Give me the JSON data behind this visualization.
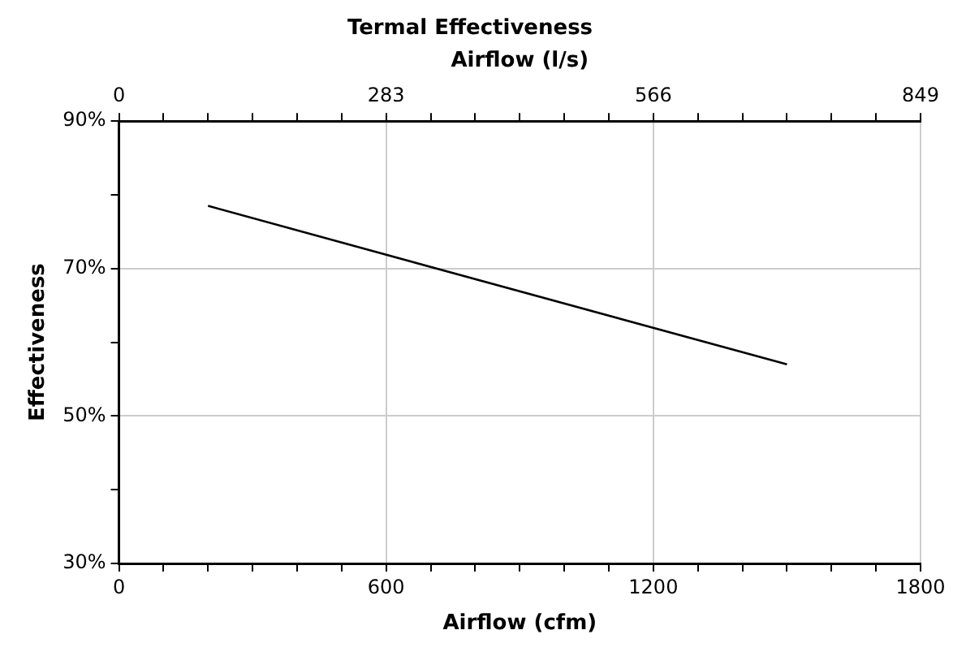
{
  "chart_data": {
    "type": "line",
    "title": "Termal Effectiveness",
    "x2label": "Airflow (l/s)",
    "xlabel": "Airflow (cfm)",
    "ylabel": "Effectiveness",
    "x": [
      200,
      1500
    ],
    "series": [
      {
        "color": "#000000",
        "values": [
          78.5,
          57
        ]
      }
    ],
    "xlim": [
      0,
      1800
    ],
    "xticks": [
      0,
      {
        "value": 100,
        "label": null
      },
      {
        "value": 200,
        "label": null
      },
      {
        "value": 300,
        "label": null
      },
      {
        "value": 400,
        "label": null
      },
      {
        "value": 500,
        "label": null
      },
      600,
      {
        "value": 700,
        "label": null
      },
      {
        "value": 800,
        "label": null
      },
      {
        "value": 900,
        "label": null
      },
      {
        "value": 1000,
        "label": null
      },
      {
        "value": 1100,
        "label": null
      },
      1200,
      {
        "value": 1300,
        "label": null
      },
      {
        "value": 1400,
        "label": null
      },
      {
        "value": 1500,
        "label": null
      },
      {
        "value": 1600,
        "label": null
      },
      {
        "value": 1700,
        "label": null
      },
      1800
    ],
    "x2lim": [
      0,
      849
    ],
    "x2ticks": [
      0,
      {
        "value": 47.2,
        "label": null
      },
      {
        "value": 94.3,
        "label": null
      },
      {
        "value": 141.5,
        "label": null
      },
      {
        "value": 188.7,
        "label": null
      },
      {
        "value": 235.8,
        "label": null
      },
      283,
      {
        "value": 330.2,
        "label": null
      },
      {
        "value": 377.3,
        "label": null
      },
      {
        "value": 424.5,
        "label": null
      },
      {
        "value": 471.7,
        "label": null
      },
      {
        "value": 518.8,
        "label": null
      },
      566,
      {
        "value": 613.2,
        "label": null
      },
      {
        "value": 660.3,
        "label": null
      },
      {
        "value": 707.5,
        "label": null
      },
      {
        "value": 754.7,
        "label": null
      },
      {
        "value": 801.8,
        "label": null
      },
      849
    ],
    "ylim": [
      30,
      90
    ],
    "yticks": [
      {
        "value": 30,
        "label": "30%"
      },
      {
        "value": 40,
        "label": null
      },
      {
        "value": 50,
        "label": "50%"
      },
      {
        "value": 60,
        "label": null
      },
      {
        "value": 70,
        "label": "70%"
      },
      {
        "value": 80,
        "label": null
      },
      {
        "value": 90,
        "label": "90%"
      }
    ],
    "grid": true,
    "legend": false,
    "marker": "none",
    "line_style": "solid"
  }
}
